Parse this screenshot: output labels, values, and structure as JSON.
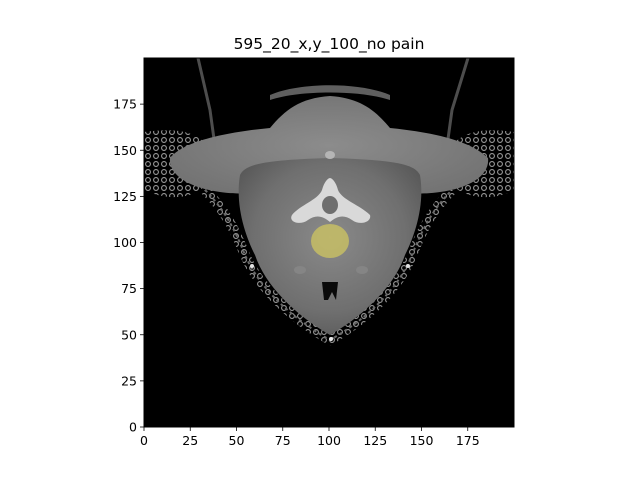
{
  "figure": {
    "title": "595_20_x,y_100_no pain",
    "image_description_icon": "ct-axial-neck-slice"
  },
  "chart_data": {
    "type": "heatmap",
    "title": "595_20_x,y_100_no pain",
    "xlabel": "",
    "ylabel": "",
    "xlim": [
      0,
      200
    ],
    "ylim": [
      0,
      200
    ],
    "x_ticks": [
      0,
      25,
      50,
      75,
      100,
      125,
      150,
      175
    ],
    "y_ticks": [
      0,
      25,
      50,
      75,
      100,
      125,
      150,
      175
    ],
    "x_tick_labels": [
      "0",
      "25",
      "50",
      "75",
      "100",
      "125",
      "150",
      "175"
    ],
    "y_tick_labels": [
      "0",
      "25",
      "50",
      "75",
      "100",
      "125",
      "150",
      "175"
    ],
    "grid": false,
    "colormap": "gray",
    "overlay": {
      "shape": "circle",
      "color": "#cfc560",
      "center": [
        100,
        100
      ],
      "radius": 10
    }
  }
}
